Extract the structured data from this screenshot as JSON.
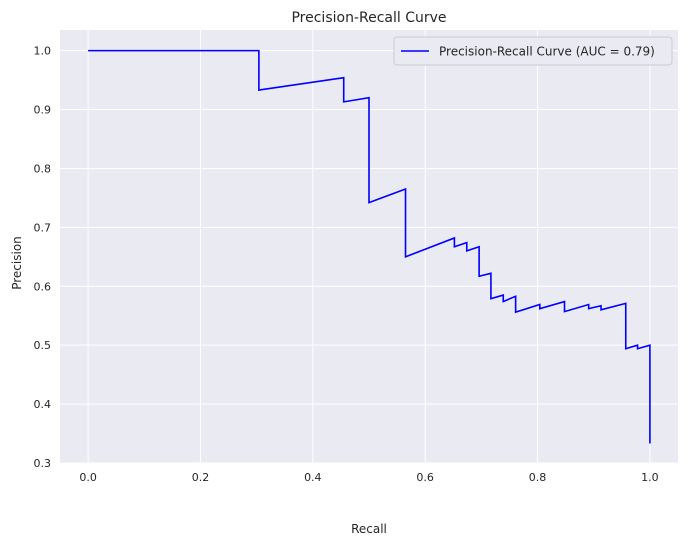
{
  "chart_data": {
    "type": "line",
    "title": "Precision-Recall Curve",
    "xlabel": "Recall",
    "ylabel": "Precision",
    "xlim": [
      -0.05,
      1.05
    ],
    "ylim": [
      0.3,
      1.035
    ],
    "xticks": [
      0.0,
      0.2,
      0.4,
      0.6,
      0.8,
      1.0
    ],
    "yticks": [
      0.3,
      0.4,
      0.5,
      0.6,
      0.7,
      0.8,
      0.9,
      1.0
    ],
    "xtick_labels": [
      "0.0",
      "0.2",
      "0.4",
      "0.6",
      "0.8",
      "1.0"
    ],
    "ytick_labels": [
      "0.3",
      "0.4",
      "0.5",
      "0.6",
      "0.7",
      "0.8",
      "0.9",
      "1.0"
    ],
    "grid": true,
    "legend_position": "top-right",
    "background_color": "#eaeaf2",
    "grid_color": "#ffffff",
    "series": [
      {
        "name": "Precision-Recall Curve (AUC = 0.79)",
        "color": "#0000ff",
        "x": [
          0.0,
          0.304,
          0.304,
          0.455,
          0.455,
          0.5,
          0.5,
          0.565,
          0.565,
          0.652,
          0.652,
          0.674,
          0.674,
          0.696,
          0.696,
          0.717,
          0.717,
          0.739,
          0.739,
          0.761,
          0.761,
          0.804,
          0.804,
          0.848,
          0.848,
          0.891,
          0.891,
          0.913,
          0.913,
          0.957,
          0.957,
          0.978,
          0.978,
          1.0,
          1.0
        ],
        "y": [
          1.0,
          1.0,
          0.933,
          0.954,
          0.913,
          0.92,
          0.742,
          0.765,
          0.65,
          0.682,
          0.667,
          0.674,
          0.66,
          0.667,
          0.617,
          0.622,
          0.579,
          0.585,
          0.574,
          0.583,
          0.556,
          0.569,
          0.562,
          0.574,
          0.557,
          0.569,
          0.562,
          0.567,
          0.56,
          0.571,
          0.494,
          0.5,
          0.494,
          0.5,
          0.333
        ]
      }
    ]
  }
}
